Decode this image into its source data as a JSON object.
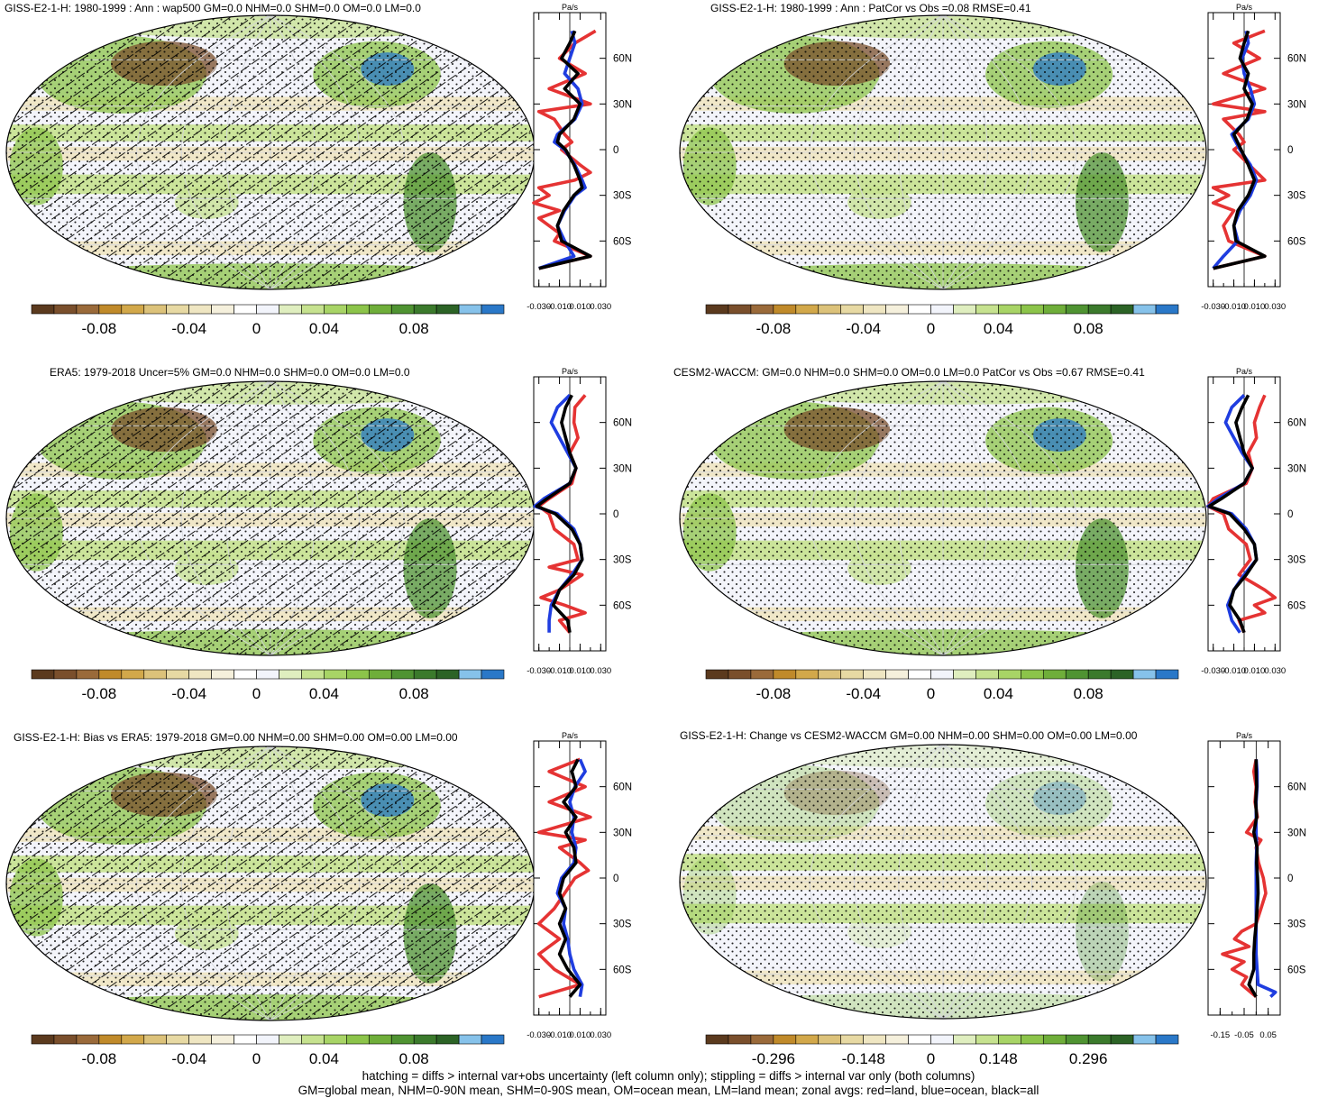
{
  "colors": {
    "land": "#e53333",
    "ocean": "#1f3de0",
    "all": "#000000",
    "palette": [
      "#5b3a1e",
      "#7a4f2c",
      "#9a6a3a",
      "#c08a2a",
      "#d2a84a",
      "#dcc27a",
      "#e7d9a3",
      "#efe6c2",
      "#f5f0dc",
      "#ffffff",
      "#f2f4fb",
      "#dfeebf",
      "#c6e28f",
      "#a8d466",
      "#8cc44a",
      "#6fae3a",
      "#4f9332",
      "#3b7a2c",
      "#2c6326",
      "#86c2ea",
      "#2a78c8"
    ],
    "map_colors": {
      "ocean_light": "#f3f4fa",
      "tan": "#efe6c2",
      "green_light": "#c6e28f",
      "green": "#8cc44a",
      "green_dark": "#4f9332",
      "brown": "#7a4f2c",
      "blue": "#2a78c8",
      "graticule": "#d4d6dc"
    }
  },
  "panels": [
    {
      "id": "p1",
      "title": "GISS-E2-1-H: 1980-1999 : Ann : wap500 GM=0.0 NHM=0.0 SHM=0.0 OM=0.0 LM=0.0",
      "hatch": true,
      "stipple": true,
      "cbar_ticks": [
        "-0.08",
        "-0.04",
        "0",
        "0.04",
        "0.08"
      ],
      "zonal_units": "Pa/s"
    },
    {
      "id": "p2",
      "title": "GISS-E2-1-H: 1980-1999 : Ann : PatCor vs Obs =0.08 RMSE=0.41",
      "hatch": false,
      "stipple": true,
      "cbar_ticks": [
        "-0.08",
        "-0.04",
        "0",
        "0.04",
        "0.08"
      ],
      "zonal_units": "Pa/s"
    },
    {
      "id": "p3",
      "title": "ERA5: 1979-2018 Uncer=5% GM=0.0 NHM=0.0 SHM=0.0 OM=0.0 LM=0.0",
      "hatch": true,
      "stipple": true,
      "cbar_ticks": [
        "-0.08",
        "-0.04",
        "0",
        "0.04",
        "0.08"
      ],
      "zonal_units": "Pa/s"
    },
    {
      "id": "p4",
      "title": "CESM2-WACCM: GM=0.0 NHM=0.0 SHM=0.0 OM=0.0 LM=0.0 PatCor vs Obs =0.67 RMSE=0.41",
      "hatch": false,
      "stipple": true,
      "cbar_ticks": [
        "-0.08",
        "-0.04",
        "0",
        "0.04",
        "0.08"
      ],
      "zonal_units": "Pa/s"
    },
    {
      "id": "p5",
      "title": "GISS-E2-1-H: Bias vs ERA5: 1979-2018 GM=0.00 NHM=0.00 SHM=0.00 OM=0.00 LM=0.00",
      "hatch": true,
      "stipple": true,
      "cbar_ticks": [
        "-0.08",
        "-0.04",
        "0",
        "0.04",
        "0.08"
      ],
      "zonal_units": "Pa/s"
    },
    {
      "id": "p6",
      "title": "GISS-E2-1-H: Change vs CESM2-WACCM GM=0.00 NHM=0.00 SHM=0.00 OM=0.00 LM=0.00",
      "hatch": false,
      "stipple": true,
      "cbar_ticks": [
        "-0.296",
        "-0.148",
        "0",
        "0.148",
        "0.296"
      ],
      "zonal_units": "Pa/s"
    }
  ],
  "chart_data": [
    {
      "type": "line",
      "panel": "p1",
      "x_ticks": [
        "-0.030",
        "-0.010",
        "0.010",
        "0.030"
      ],
      "xlim": [
        -0.035,
        0.035
      ],
      "y_ticks": [
        "60N",
        "30N",
        "0",
        "30S",
        "60S"
      ],
      "ylim": [
        -90,
        90
      ],
      "series": [
        {
          "name": "land",
          "color": "#e53333",
          "lat": [
            78,
            70,
            60,
            50,
            40,
            30,
            25,
            20,
            10,
            5,
            0,
            -10,
            -15,
            -20,
            -25,
            -30,
            -35,
            -40,
            -45,
            -50,
            -55,
            -60,
            -70,
            -78
          ],
          "values": [
            0.025,
            0.005,
            -0.01,
            0.015,
            -0.02,
            0.02,
            -0.03,
            -0.015,
            -0.005,
            0.002,
            -0.008,
            0.01,
            0.02,
            0.005,
            -0.03,
            -0.02,
            -0.035,
            -0.01,
            -0.03,
            -0.02,
            -0.01,
            -0.015,
            0.02,
            -0.03
          ]
        },
        {
          "name": "ocean",
          "color": "#1f3de0",
          "lat": [
            78,
            70,
            60,
            50,
            40,
            30,
            20,
            10,
            5,
            0,
            -10,
            -20,
            -25,
            -30,
            -40,
            -50,
            -60,
            -70,
            -78
          ],
          "values": [
            0.002,
            0.005,
            0.0,
            -0.005,
            0.008,
            0.012,
            0.005,
            -0.012,
            -0.015,
            -0.005,
            0.005,
            0.012,
            0.015,
            0.005,
            -0.005,
            -0.012,
            -0.005,
            0.004,
            -0.03
          ]
        },
        {
          "name": "all",
          "color": "#000000",
          "lat": [
            78,
            70,
            60,
            50,
            40,
            30,
            20,
            10,
            5,
            0,
            -10,
            -20,
            -25,
            -30,
            -40,
            -50,
            -60,
            -70,
            -78
          ],
          "values": [
            0.005,
            0.0,
            -0.008,
            0.008,
            -0.005,
            0.01,
            0.004,
            -0.01,
            -0.012,
            -0.004,
            0.004,
            0.01,
            0.012,
            0.004,
            -0.006,
            -0.012,
            -0.008,
            0.02,
            -0.03
          ]
        }
      ]
    },
    {
      "type": "line",
      "panel": "p2",
      "x_ticks": [
        "-0.030",
        "-0.010",
        "0.010",
        "0.030"
      ],
      "xlim": [
        -0.035,
        0.035
      ],
      "y_ticks": [
        "60N",
        "30N",
        "0",
        "30S",
        "60S"
      ],
      "ylim": [
        -90,
        90
      ],
      "series": [
        {
          "name": "land",
          "color": "#e53333",
          "lat": [
            78,
            70,
            60,
            50,
            40,
            30,
            25,
            20,
            10,
            5,
            0,
            -10,
            -20,
            -25,
            -30,
            -35,
            -40,
            -50,
            -60,
            -70,
            -78
          ],
          "values": [
            0.02,
            -0.01,
            0.015,
            -0.02,
            0.02,
            -0.03,
            0.02,
            -0.02,
            -0.005,
            0.0,
            -0.01,
            0.005,
            0.02,
            -0.03,
            -0.015,
            -0.03,
            -0.01,
            -0.02,
            -0.015,
            0.02,
            -0.03
          ]
        },
        {
          "name": "ocean",
          "color": "#1f3de0",
          "lat": [
            78,
            70,
            60,
            50,
            40,
            30,
            20,
            10,
            0,
            -10,
            -20,
            -30,
            -40,
            -50,
            -60,
            -70,
            -78
          ],
          "values": [
            0.002,
            0.004,
            -0.002,
            0.0,
            0.006,
            0.01,
            0.004,
            -0.012,
            -0.004,
            0.006,
            0.012,
            0.006,
            -0.004,
            -0.01,
            -0.006,
            -0.02,
            -0.03
          ]
        },
        {
          "name": "all",
          "color": "#000000",
          "lat": [
            78,
            70,
            60,
            50,
            40,
            30,
            20,
            10,
            0,
            -10,
            -20,
            -30,
            -40,
            -50,
            -60,
            -70,
            -78
          ],
          "values": [
            0.004,
            0.0,
            -0.004,
            0.004,
            0.0,
            0.008,
            0.003,
            -0.01,
            -0.003,
            0.004,
            0.01,
            0.004,
            -0.006,
            -0.01,
            -0.008,
            0.02,
            -0.03
          ]
        }
      ]
    },
    {
      "type": "line",
      "panel": "p3",
      "x_ticks": [
        "-0.030",
        "-0.010",
        "0.010",
        "0.030"
      ],
      "xlim": [
        -0.035,
        0.035
      ],
      "y_ticks": [
        "60N",
        "30N",
        "0",
        "30S",
        "60S"
      ],
      "ylim": [
        -90,
        90
      ],
      "series": [
        {
          "name": "land",
          "color": "#e53333",
          "lat": [
            78,
            70,
            60,
            50,
            40,
            30,
            20,
            10,
            5,
            0,
            -10,
            -20,
            -30,
            -35,
            -40,
            -50,
            -55,
            -60,
            -65,
            -70,
            -78
          ],
          "values": [
            0.015,
            0.005,
            0.004,
            0.008,
            0.0,
            0.006,
            0.002,
            -0.02,
            -0.03,
            -0.02,
            -0.015,
            0.004,
            0.008,
            -0.02,
            0.012,
            -0.01,
            -0.028,
            -0.005,
            0.015,
            -0.01,
            0.0
          ]
        },
        {
          "name": "ocean",
          "color": "#1f3de0",
          "lat": [
            78,
            70,
            60,
            50,
            40,
            30,
            20,
            10,
            5,
            0,
            -10,
            -20,
            -30,
            -40,
            -50,
            -60,
            -70,
            -78
          ],
          "values": [
            0.0,
            -0.012,
            -0.018,
            -0.01,
            -0.002,
            0.006,
            0.0,
            -0.025,
            -0.034,
            -0.012,
            0.004,
            0.01,
            0.012,
            0.002,
            -0.01,
            -0.018,
            -0.02,
            -0.02
          ]
        },
        {
          "name": "all",
          "color": "#000000",
          "lat": [
            78,
            70,
            60,
            50,
            40,
            30,
            20,
            10,
            5,
            0,
            -10,
            -20,
            -30,
            -40,
            -50,
            -60,
            -70,
            -78
          ],
          "values": [
            0.002,
            -0.004,
            -0.008,
            -0.004,
            0.0,
            0.006,
            0.0,
            -0.022,
            -0.032,
            -0.014,
            0.002,
            0.01,
            0.012,
            0.004,
            -0.01,
            -0.016,
            -0.002,
            0.0
          ]
        }
      ]
    },
    {
      "type": "line",
      "panel": "p4",
      "x_ticks": [
        "-0.030",
        "-0.010",
        "0.010",
        "0.030"
      ],
      "xlim": [
        -0.035,
        0.035
      ],
      "y_ticks": [
        "60N",
        "30N",
        "0",
        "30S",
        "60S"
      ],
      "ylim": [
        -90,
        90
      ],
      "series": [
        {
          "name": "land",
          "color": "#e53333",
          "lat": [
            78,
            70,
            60,
            50,
            40,
            30,
            20,
            10,
            5,
            0,
            -10,
            -20,
            -30,
            -40,
            -50,
            -55,
            -60,
            -65,
            -70,
            -78
          ],
          "values": [
            0.02,
            0.015,
            0.01,
            0.012,
            0.004,
            0.008,
            0.002,
            -0.03,
            -0.035,
            -0.02,
            -0.015,
            0.002,
            0.006,
            -0.005,
            0.02,
            0.03,
            0.01,
            0.02,
            -0.005,
            0.0
          ]
        },
        {
          "name": "ocean",
          "color": "#1f3de0",
          "lat": [
            78,
            70,
            60,
            50,
            40,
            30,
            20,
            10,
            5,
            0,
            -10,
            -20,
            -30,
            -40,
            -50,
            -60,
            -70,
            -78
          ],
          "values": [
            0.0,
            -0.012,
            -0.018,
            -0.01,
            -0.002,
            0.008,
            0.0,
            -0.025,
            -0.035,
            -0.012,
            0.002,
            0.01,
            0.012,
            0.0,
            -0.01,
            -0.016,
            -0.012,
            -0.004
          ]
        },
        {
          "name": "all",
          "color": "#000000",
          "lat": [
            78,
            70,
            60,
            50,
            40,
            30,
            20,
            10,
            5,
            0,
            -10,
            -20,
            -30,
            -40,
            -50,
            -60,
            -70,
            -78
          ],
          "values": [
            0.004,
            -0.002,
            -0.008,
            -0.004,
            0.0,
            0.008,
            0.0,
            -0.022,
            -0.034,
            -0.014,
            0.0,
            0.01,
            0.012,
            0.002,
            -0.01,
            -0.014,
            -0.004,
            0.0
          ]
        }
      ]
    },
    {
      "type": "line",
      "panel": "p5",
      "x_ticks": [
        "-0.030",
        "-0.010",
        "0.010",
        "0.030"
      ],
      "xlim": [
        -0.035,
        0.035
      ],
      "y_ticks": [
        "60N",
        "30N",
        "0",
        "30S",
        "60S"
      ],
      "ylim": [
        -90,
        90
      ],
      "series": [
        {
          "name": "land",
          "color": "#e53333",
          "lat": [
            78,
            70,
            60,
            50,
            40,
            30,
            25,
            20,
            10,
            5,
            0,
            -10,
            -20,
            -30,
            -40,
            -50,
            -60,
            -70,
            -78
          ],
          "values": [
            0.01,
            -0.02,
            0.015,
            -0.02,
            0.02,
            -0.03,
            0.015,
            -0.01,
            0.01,
            0.018,
            0.005,
            -0.005,
            -0.015,
            -0.03,
            -0.01,
            -0.03,
            -0.015,
            0.01,
            -0.03
          ]
        },
        {
          "name": "ocean",
          "color": "#1f3de0",
          "lat": [
            78,
            70,
            60,
            50,
            40,
            30,
            20,
            10,
            0,
            -10,
            -20,
            -30,
            -40,
            -50,
            -60,
            -70,
            -78
          ],
          "values": [
            0.01,
            0.015,
            0.005,
            0.0,
            0.004,
            0.002,
            0.006,
            0.004,
            -0.008,
            -0.012,
            -0.004,
            -0.006,
            -0.002,
            0.0,
            0.004,
            0.012,
            0.01
          ]
        },
        {
          "name": "all",
          "color": "#000000",
          "lat": [
            78,
            70,
            60,
            50,
            40,
            30,
            20,
            10,
            0,
            -10,
            -20,
            -30,
            -40,
            -50,
            -60,
            -70,
            -78
          ],
          "values": [
            0.008,
            0.002,
            0.006,
            -0.006,
            0.006,
            -0.004,
            0.004,
            0.006,
            -0.006,
            -0.01,
            -0.004,
            -0.01,
            -0.004,
            -0.01,
            -0.002,
            0.01,
            0.0
          ]
        }
      ]
    },
    {
      "type": "line",
      "panel": "p6",
      "x_ticks": [
        "-0.15",
        "-0.05",
        "0.05"
      ],
      "xlim": [
        -0.2,
        0.1
      ],
      "y_ticks": [
        "60N",
        "30N",
        "0",
        "30S",
        "60S"
      ],
      "ylim": [
        -90,
        90
      ],
      "series": [
        {
          "name": "land",
          "color": "#e53333",
          "lat": [
            78,
            70,
            60,
            50,
            40,
            30,
            25,
            20,
            10,
            0,
            -10,
            -20,
            -30,
            -35,
            -40,
            -45,
            -50,
            -55,
            -60,
            -65,
            -70,
            -78
          ],
          "values": [
            0.0,
            -0.01,
            0.0,
            -0.005,
            0.005,
            -0.04,
            0.02,
            0.0,
            0.01,
            0.03,
            0.04,
            0.02,
            0.0,
            -0.06,
            -0.09,
            -0.03,
            -0.14,
            -0.05,
            -0.1,
            -0.04,
            -0.06,
            0.0
          ]
        },
        {
          "name": "ocean",
          "color": "#1f3de0",
          "lat": [
            78,
            70,
            60,
            50,
            40,
            30,
            20,
            10,
            0,
            -10,
            -20,
            -30,
            -40,
            -50,
            -60,
            -70,
            -75,
            -78
          ],
          "values": [
            0.0,
            0.004,
            0.004,
            0.0,
            0.0,
            0.0,
            0.002,
            0.0,
            0.0,
            0.0,
            0.0,
            0.0,
            0.0,
            0.0,
            0.004,
            0.008,
            0.08,
            0.06
          ]
        },
        {
          "name": "all",
          "color": "#000000",
          "lat": [
            78,
            70,
            60,
            50,
            40,
            30,
            20,
            10,
            0,
            -10,
            -20,
            -30,
            -40,
            -50,
            -60,
            -70,
            -78
          ],
          "values": [
            0.0,
            0.0,
            0.002,
            -0.002,
            0.002,
            -0.01,
            0.004,
            0.002,
            0.006,
            0.008,
            0.004,
            0.0,
            -0.006,
            -0.01,
            -0.01,
            -0.03,
            0.0
          ]
        }
      ]
    }
  ],
  "footnotes": [
    "hatching = diffs > internal var+obs uncertainty (left column only); stippling = diffs > internal var only (both columns)",
    "GM=global mean, NHM=0-90N mean, SHM=0-90S mean, OM=ocean mean, LM=land mean; zonal avgs: red=land, blue=ocean, black=all"
  ]
}
